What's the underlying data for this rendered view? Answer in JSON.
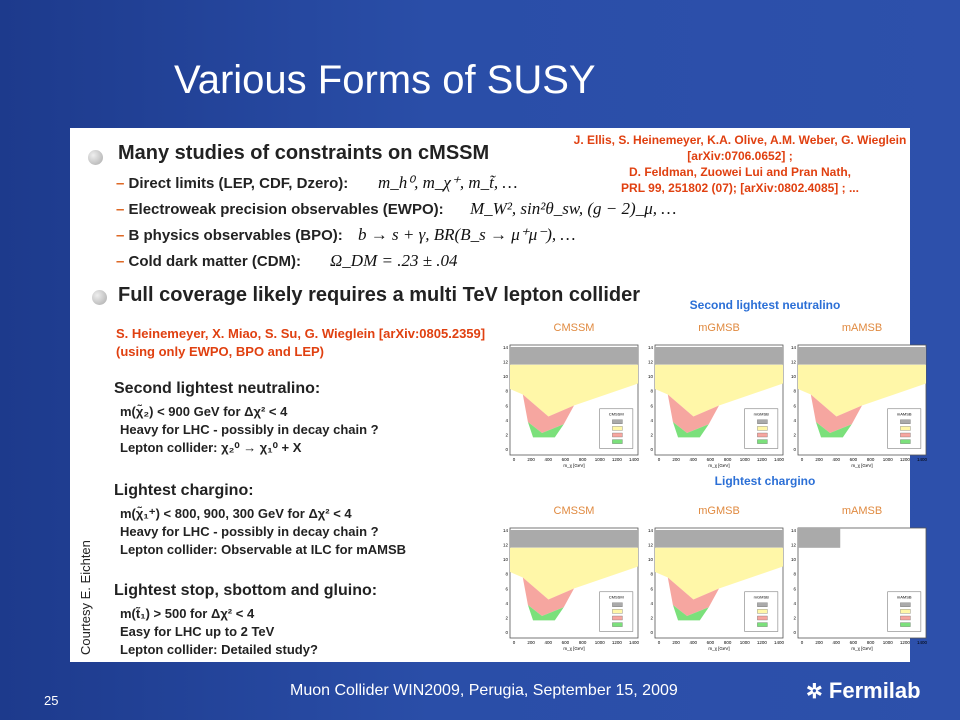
{
  "slide": {
    "title": "Various Forms of SUSY",
    "courtesy": "Courtesy E. Eichten",
    "footer": "Muon Collider WIN2009, Perugia, September 15, 2009",
    "page_number": "25",
    "logo": "Fermilab"
  },
  "bullets": [
    {
      "text": "Many studies of constraints on cMSSM",
      "items": [
        {
          "label": "Direct limits (LEP, CDF, Dzero):",
          "formula": "m_h⁰, m_χ⁺, m_t̃, …"
        },
        {
          "label": "Electroweak precision observables (EWPO):",
          "formula": "M_W², sin²θ_sw, (g − 2)_μ, …"
        },
        {
          "label": "B physics observables (BPO):",
          "formula": "b → s + γ,  BR(B_s → μ⁺μ⁻), …"
        },
        {
          "label": "Cold dark matter (CDM):",
          "formula": "Ω_DM = .23 ± .04"
        }
      ]
    },
    {
      "text": "Full coverage likely requires a multi TeV lepton collider"
    }
  ],
  "references": [
    "J. Ellis, S. Heinemeyer, K.A. Olive, A.M. Weber, G. Wieglein",
    "[arXiv:0706.0652] ;",
    "D. Feldman, Zuowei Lui and Pran Nath,",
    "PRL 99, 251802 (07); [arXiv:0802.4085] ; ..."
  ],
  "study": {
    "reference": [
      "S. Heinemeyer, X. Miao, S. Su, G. Wieglein [arXiv:0805.2359]",
      "(using only EWPO, BPO and LEP)"
    ],
    "sections": [
      {
        "heading": "Second lightest neutralino:",
        "lines": [
          "m(χ̃₂) < 900 GeV for Δχ² < 4",
          "Heavy for LHC - possibly in decay chain ?",
          "Lepton collider:  χ₂⁰ → χ₁⁰ + X"
        ]
      },
      {
        "heading": "Lightest chargino:",
        "lines": [
          "m(χ̃₁⁺) < 800, 900, 300 GeV for Δχ² < 4",
          "Heavy for LHC - possibly in decay chain ?",
          "Lepton collider: Observable at ILC for mAMSB"
        ]
      },
      {
        "heading": "Lightest stop, sbottom and gluino:",
        "lines": [
          "m(t̃₁) > 500 for Δχ² < 4",
          "Easy for LHC up to 2 TeV",
          "Lepton collider: Detailed study?"
        ]
      }
    ]
  },
  "figures": {
    "rows": [
      {
        "title": "Second lightest neutralino",
        "panels": [
          "CMSSM",
          "mGMSB",
          "mAMSB"
        ]
      },
      {
        "title": "Lightest chargino",
        "panels": [
          "CMSSM",
          "mGMSB",
          "mAMSB"
        ]
      }
    ],
    "x_ticks": [
      "0",
      "200",
      "400",
      "600",
      "800",
      "1000",
      "1200",
      "1400"
    ],
    "y_ticks": [
      "0",
      "2",
      "4",
      "6",
      "8",
      "10",
      "12",
      "14"
    ],
    "x_label": "m_χ [GeV]"
  }
}
